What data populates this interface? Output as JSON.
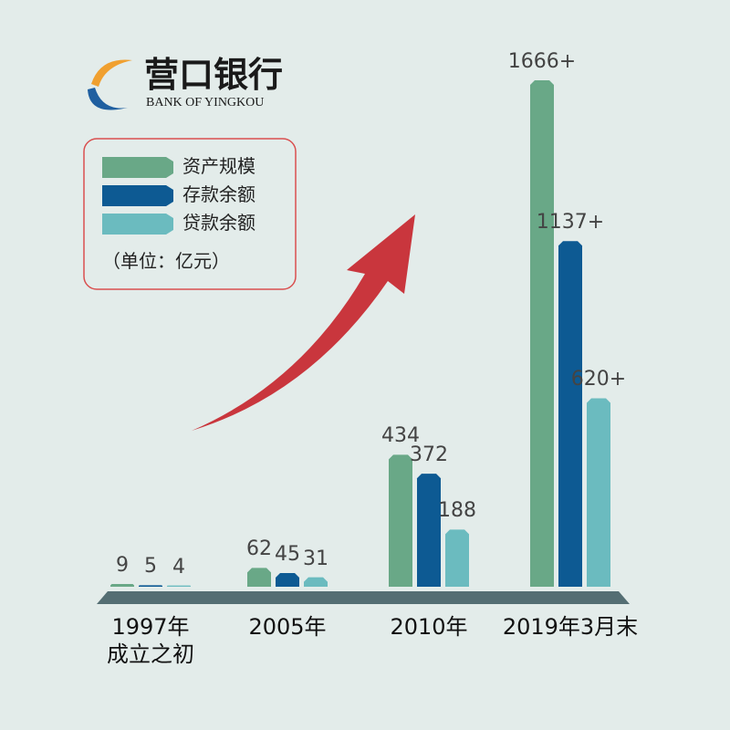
{
  "brand": {
    "name": "营口银行",
    "english": "BANK OF YINGKOU"
  },
  "chart_data": {
    "type": "bar",
    "categories": [
      "1997年\n成立之初",
      "2005年",
      "2010年",
      "2019年3月末"
    ],
    "unit_note": "（单位：亿元）",
    "series": [
      {
        "name": "资产规模",
        "color": "#69a887",
        "values": [
          9,
          62,
          434,
          1666
        ],
        "value_labels": [
          "9",
          "62",
          "434",
          "1666+"
        ]
      },
      {
        "name": "存款余额",
        "color": "#0d5a93",
        "values": [
          5,
          45,
          372,
          1137
        ],
        "value_labels": [
          "5",
          "45",
          "372",
          "1137+"
        ]
      },
      {
        "name": "贷款余额",
        "color": "#6bbbbf",
        "values": [
          4,
          31,
          188,
          620
        ],
        "value_labels": [
          "4",
          "31",
          "188",
          "620+"
        ]
      }
    ]
  }
}
